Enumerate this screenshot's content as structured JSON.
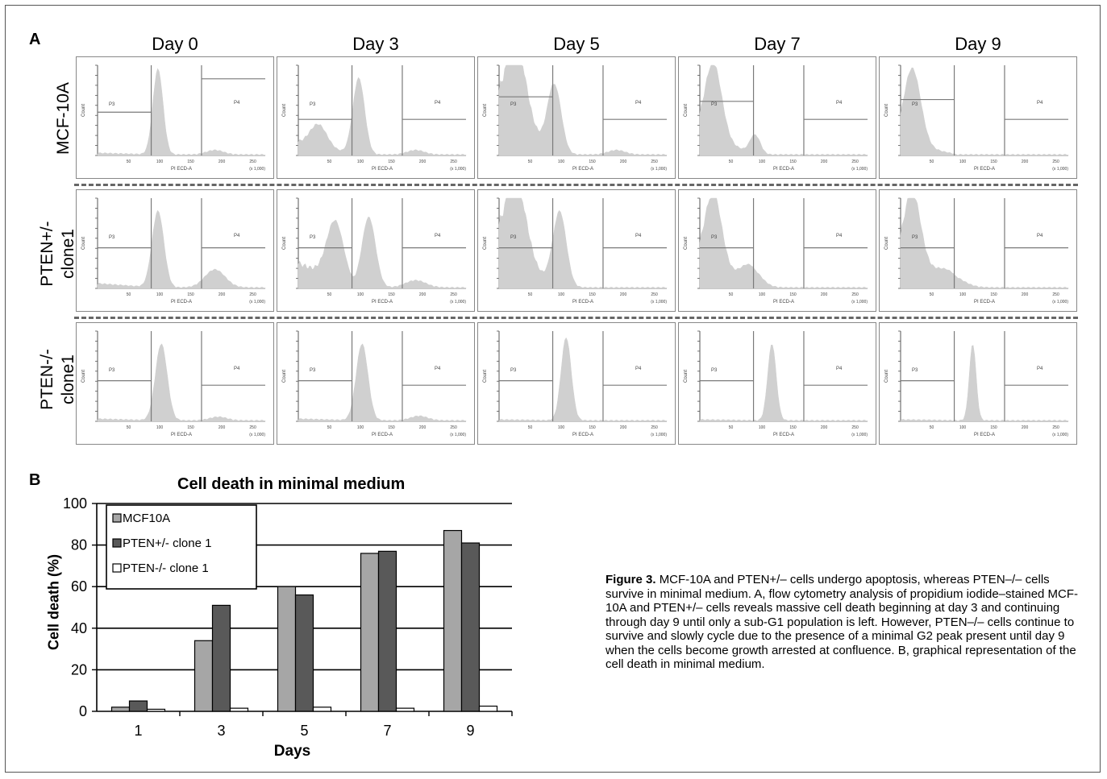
{
  "figure": {
    "panel_a_letter": "A",
    "panel_b_letter": "B",
    "days": [
      "Day 0",
      "Day 3",
      "Day 5",
      "Day 7",
      "Day 9"
    ],
    "rows": [
      {
        "line1": "MCF-10A",
        "line2": ""
      },
      {
        "line1": "PTEN+/-",
        "line2": "clone1"
      },
      {
        "line1": "PTEN-/-",
        "line2": "clone1"
      }
    ],
    "histogram": {
      "gate_left": "P3",
      "gate_right": "P4",
      "ylabel": "Count",
      "xlabel": "PI ECD-A",
      "x_ticks": [
        "50",
        "100",
        "150",
        "200",
        "250"
      ],
      "x_unit": "(x 1,000)",
      "colors": {
        "fill": "#d0d0d0",
        "line": "#7a7a7a"
      }
    }
  },
  "chart_data": {
    "type": "bar",
    "title": "Cell death in minimal medium",
    "xlabel": "Days",
    "ylabel": "Cell death (%)",
    "categories": [
      "1",
      "3",
      "5",
      "7",
      "9"
    ],
    "ylim": [
      0,
      100
    ],
    "yticks": [
      "0",
      "20",
      "40",
      "60",
      "80",
      "100"
    ],
    "grid": true,
    "legend_position": "top-left",
    "series": [
      {
        "name": "MCF10A",
        "color": "#a6a6a6",
        "values": [
          2,
          34,
          60,
          76,
          87
        ]
      },
      {
        "name": "PTEN+/- clone 1",
        "color": "#595959",
        "values": [
          5,
          51,
          56,
          77,
          81
        ]
      },
      {
        "name": "PTEN-/- clone 1",
        "color": "#ffffff",
        "values": [
          1,
          1.5,
          2,
          1.5,
          2.5
        ]
      }
    ]
  },
  "caption": {
    "fig_label": "Figure 3.",
    "text": "MCF-10A and PTEN+/– cells undergo apoptosis, whereas PTEN–/– cells survive in minimal medium. A, flow cytometry analysis of propidium iodide–stained MCF-10A and PTEN+/– cells reveals massive cell death beginning at day 3 and continuing through day 9 until only a sub-G1 population is left. However, PTEN–/– cells continue to survive and slowly cycle due to the presence of a minimal G2 peak present until day 9 when the cells become growth arrested at confluence. B, graphical representation of the cell death in minimal medium."
  }
}
